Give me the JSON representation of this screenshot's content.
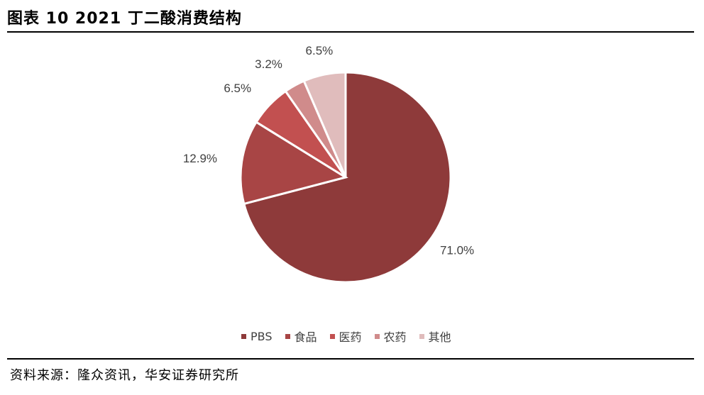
{
  "title": "图表 10 2021 丁二酸消费结构",
  "source": "资料来源：隆众资讯，华安证券研究所",
  "chart_data": {
    "type": "pie",
    "title": "",
    "categories": [
      "PBS",
      "食品",
      "医药",
      "农药",
      "其他"
    ],
    "values": [
      71.0,
      12.9,
      6.5,
      3.2,
      6.5
    ],
    "labels": [
      "71.0%",
      "12.9%",
      "6.5%",
      "3.2%",
      "6.5%"
    ],
    "colors": [
      "#8e3a3a",
      "#a84545",
      "#c25050",
      "#d08b8b",
      "#e0bcbc"
    ],
    "legend_position": "bottom",
    "start": "top",
    "direction": "clockwise"
  }
}
